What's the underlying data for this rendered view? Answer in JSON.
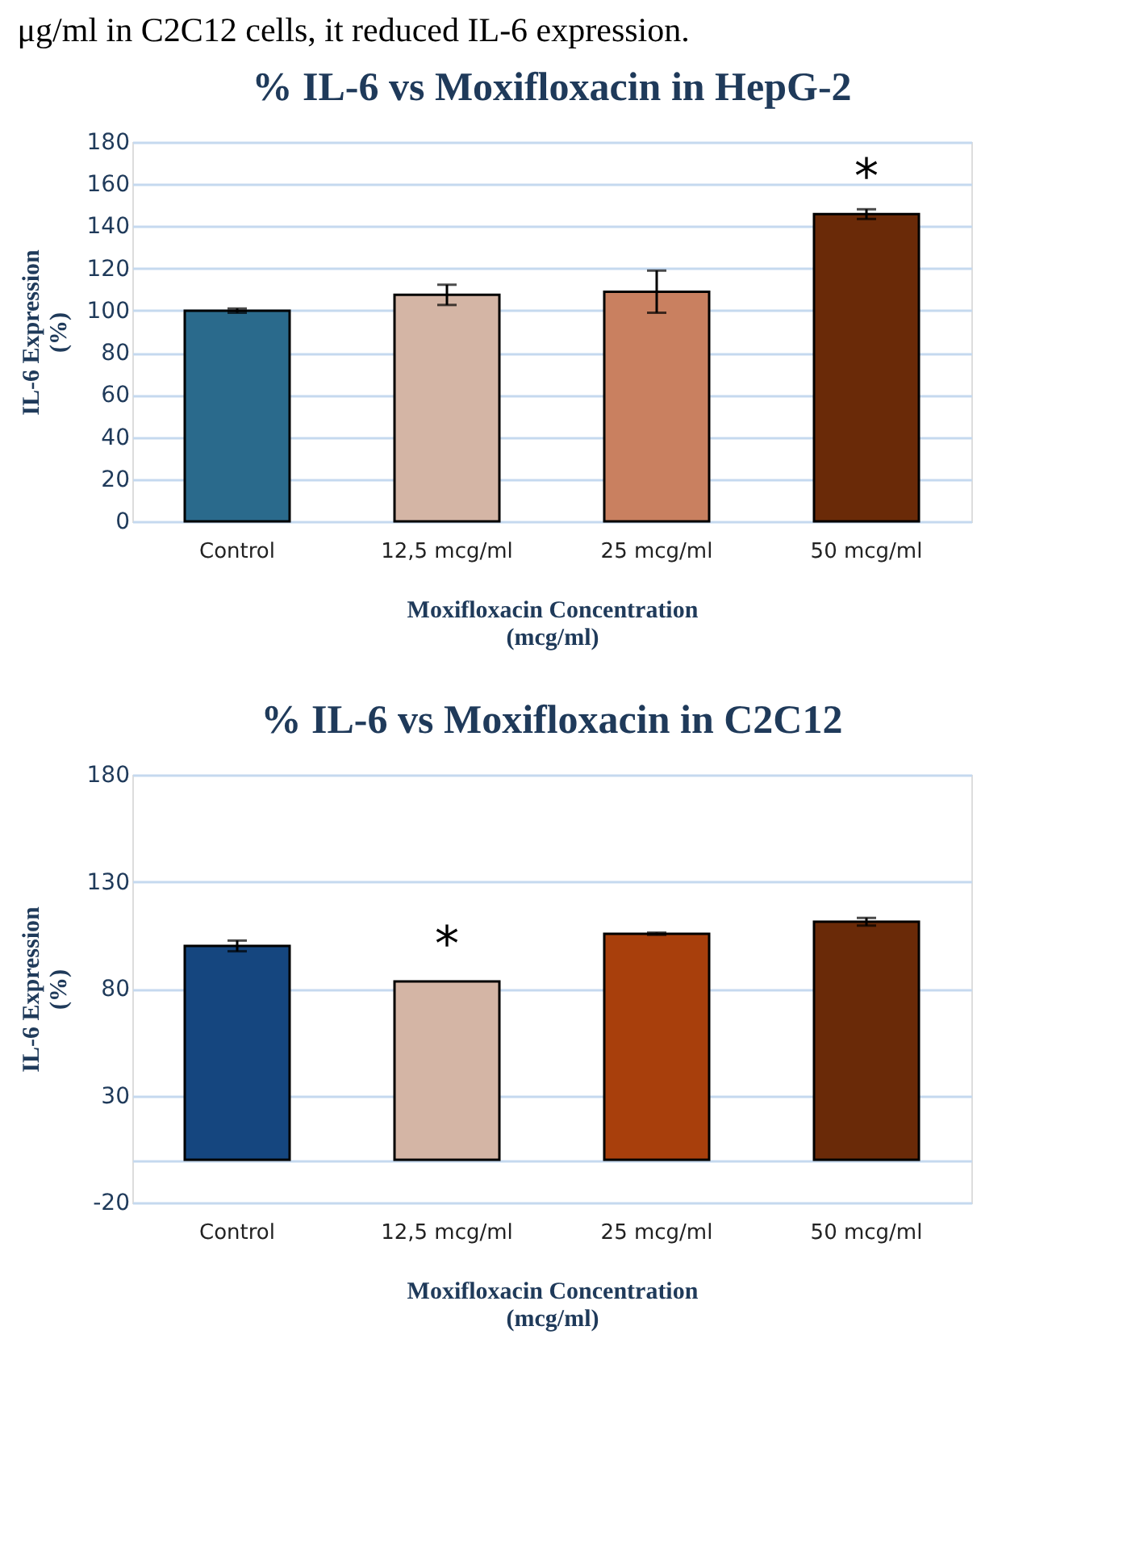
{
  "chart_data": [
    {
      "type": "bar",
      "title": "% IL-6 vs Moxifloxacin in HepG-2",
      "xlabel": "Moxifloxacin Concentration (mcg/ml)",
      "ylabel": "IL-6 Expression (%)",
      "categories": [
        "Control",
        "12,5 mcg/ml",
        "25 mcg/ml",
        "50 mcg/ml"
      ],
      "values": [
        100,
        107.5,
        109,
        145.8
      ],
      "errors": [
        1,
        4.8,
        10,
        2.3
      ],
      "colors": [
        "#2a6a8c",
        "#d4b5a5",
        "#c98060",
        "#6a2a08"
      ],
      "ylim": [
        0,
        180
      ],
      "yticks": [
        0,
        20,
        40,
        60,
        80,
        100,
        120,
        140,
        160,
        180
      ],
      "grid": "y",
      "annotations": [
        "μg/ml in C2C12 cells, it reduced IL-6 expression.",
        {
          "text": "*",
          "x": "50 mcg/ml",
          "y": 145.8
        }
      ]
    },
    {
      "type": "bar",
      "title": "% IL-6 vs Moxifloxacin in C2C12",
      "xlabel": "Moxifloxacin Concentration (mcg/ml)",
      "ylabel": "IL-6 Expression (%)",
      "categories": [
        "Control",
        "12,5 mcg/ml",
        "25 mcg/ml",
        "50 mcg/ml"
      ],
      "values": [
        100,
        83.4,
        105.7,
        111.3
      ],
      "errors": [
        2.5,
        null,
        0.5,
        1.8
      ],
      "colors": [
        "#15467f",
        "#d4b5a5",
        "#a83f0c",
        "#6a2a08"
      ],
      "ylim": [
        -20,
        180
      ],
      "yticks": [
        -20,
        {
          "value": 0,
          "label": null
        },
        30,
        80,
        130,
        180
      ],
      "grid": "y",
      "annotations": [
        {
          "text": "*",
          "x": "12,5 mcg/ml",
          "y": 83.4
        }
      ]
    }
  ]
}
